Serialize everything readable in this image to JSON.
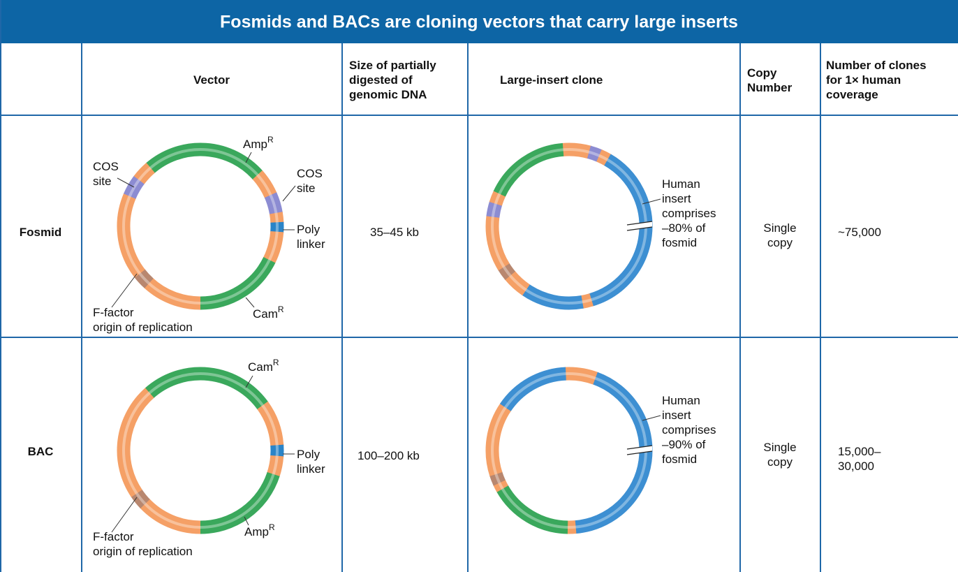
{
  "title": "Fosmids and BACs are cloning vectors that carry large inserts",
  "header": {
    "vector": "Vector",
    "size": [
      "Size of partially",
      "digested of",
      "genomic DNA"
    ],
    "clone": "Large-insert clone",
    "copy": [
      "Copy",
      "Number"
    ],
    "clones": [
      "Number of clones",
      "for 1× human",
      "coverage"
    ]
  },
  "rows": [
    {
      "name": "Fosmid",
      "vector_labels": {
        "amp": {
          "text": "Amp",
          "sup": "R"
        },
        "cos_left": [
          "COS",
          "site"
        ],
        "cos_right": [
          "COS",
          "site"
        ],
        "polylinker": [
          "Poly",
          "linker"
        ],
        "cam": {
          "text": "Cam",
          "sup": "R"
        },
        "ori": [
          "F-factor",
          "origin of replication"
        ]
      },
      "size": "35–45 kb",
      "clone_label": [
        "Human",
        "insert",
        "comprises",
        "–80% of",
        "fosmid"
      ],
      "copy": [
        "Single",
        "copy"
      ],
      "clones": [
        "~75,000"
      ]
    },
    {
      "name": "BAC",
      "vector_labels": {
        "cam": {
          "text": "Cam",
          "sup": "R"
        },
        "polylinker": [
          "Poly",
          "linker"
        ],
        "amp": {
          "text": "Amp",
          "sup": "R"
        },
        "ori": [
          "F-factor",
          "origin of replication"
        ]
      },
      "size": "100–200 kb",
      "clone_label": [
        "Human",
        "insert",
        "comprises",
        "–90% of",
        "fosmid"
      ],
      "copy": [
        "Single",
        "copy"
      ],
      "clones": [
        "15,000–",
        "30,000"
      ]
    }
  ]
}
